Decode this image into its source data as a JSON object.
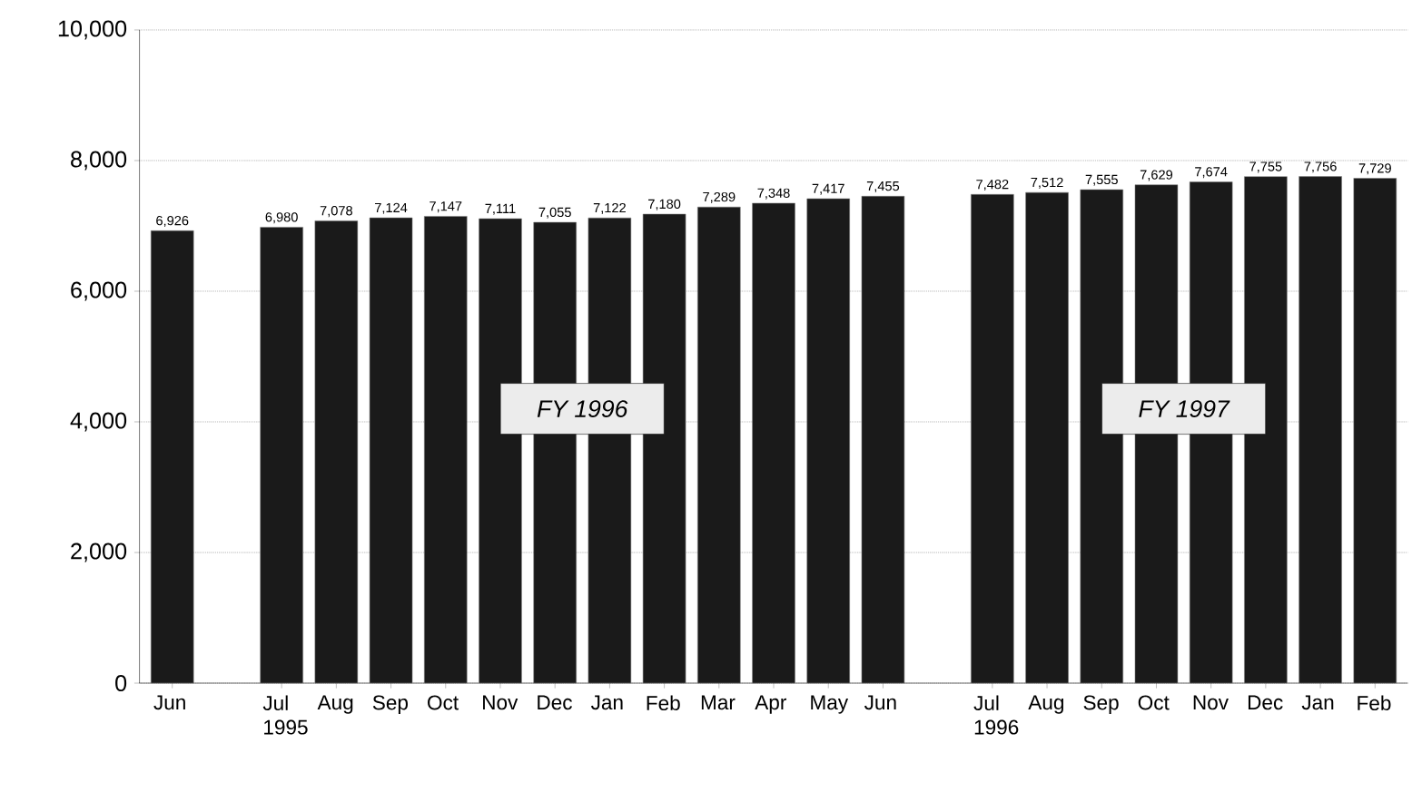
{
  "chart_data": {
    "type": "bar",
    "categories": [
      "Jun",
      null,
      "Jul 1995",
      "Aug",
      "Sep",
      "Oct",
      "Nov",
      "Dec",
      "Jan",
      "Feb",
      "Mar",
      "Apr",
      "May",
      "Jun",
      null,
      "Jul 1996",
      "Aug",
      "Sep",
      "Oct",
      "Nov",
      "Dec",
      "Jan",
      "Feb"
    ],
    "values": [
      6926,
      null,
      6980,
      7078,
      7124,
      7147,
      7111,
      7055,
      7122,
      7180,
      7289,
      7348,
      7417,
      7455,
      null,
      7482,
      7512,
      7555,
      7629,
      7674,
      7755,
      7756,
      7729
    ],
    "color": "#1a1a1a",
    "value_labels": [
      "6,926",
      null,
      "6,980",
      "7,078",
      "7,124",
      "7,147",
      "7,111",
      "7,055",
      "7,122",
      "7,180",
      "7,289",
      "7,348",
      "7,417",
      "7,455",
      null,
      "7,482",
      "7,512",
      "7,555",
      "7,629",
      "7,674",
      "7,755",
      "7,756",
      "7,729"
    ],
    "ylim": [
      0,
      10000
    ],
    "yticks": [
      0,
      {
        "value": 2000,
        "label": "2,000"
      },
      {
        "value": 4000,
        "label": "4,000"
      },
      {
        "value": 6000,
        "label": "6,000"
      },
      {
        "value": 8000,
        "label": "8,000"
      },
      {
        "value": 10000,
        "label": "10,000"
      }
    ],
    "grid": "y",
    "annotations": [
      "FY 1996",
      "FY 1997"
    ]
  }
}
